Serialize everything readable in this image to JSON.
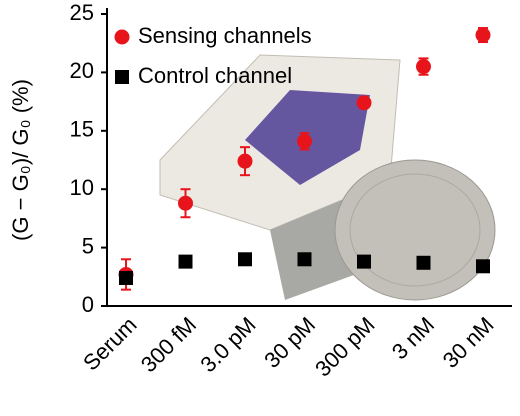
{
  "chart_data": {
    "type": "scatter",
    "ylabel": "(G − G₀)/ G₀ (%)",
    "categories": [
      "Serum",
      "300 fM",
      "3.0 pM",
      "30 pM",
      "300 pM",
      "3 nM",
      "30 nM"
    ],
    "series": [
      {
        "name": "Sensing channels",
        "color": "#e8141c",
        "marker": "circle",
        "values": [
          2.7,
          8.8,
          12.4,
          14.1,
          17.4,
          20.5,
          23.2
        ],
        "errors": [
          1.3,
          1.2,
          1.2,
          0.7,
          0.4,
          0.7,
          0.6
        ]
      },
      {
        "name": "Control channel",
        "color": "#000000",
        "marker": "square",
        "values": [
          2.4,
          3.8,
          4.0,
          4.0,
          3.8,
          3.7,
          3.4
        ]
      }
    ],
    "ylim": [
      0,
      25
    ],
    "yticks": [
      0,
      5,
      10,
      15,
      20,
      25
    ],
    "legend": "upper left"
  }
}
